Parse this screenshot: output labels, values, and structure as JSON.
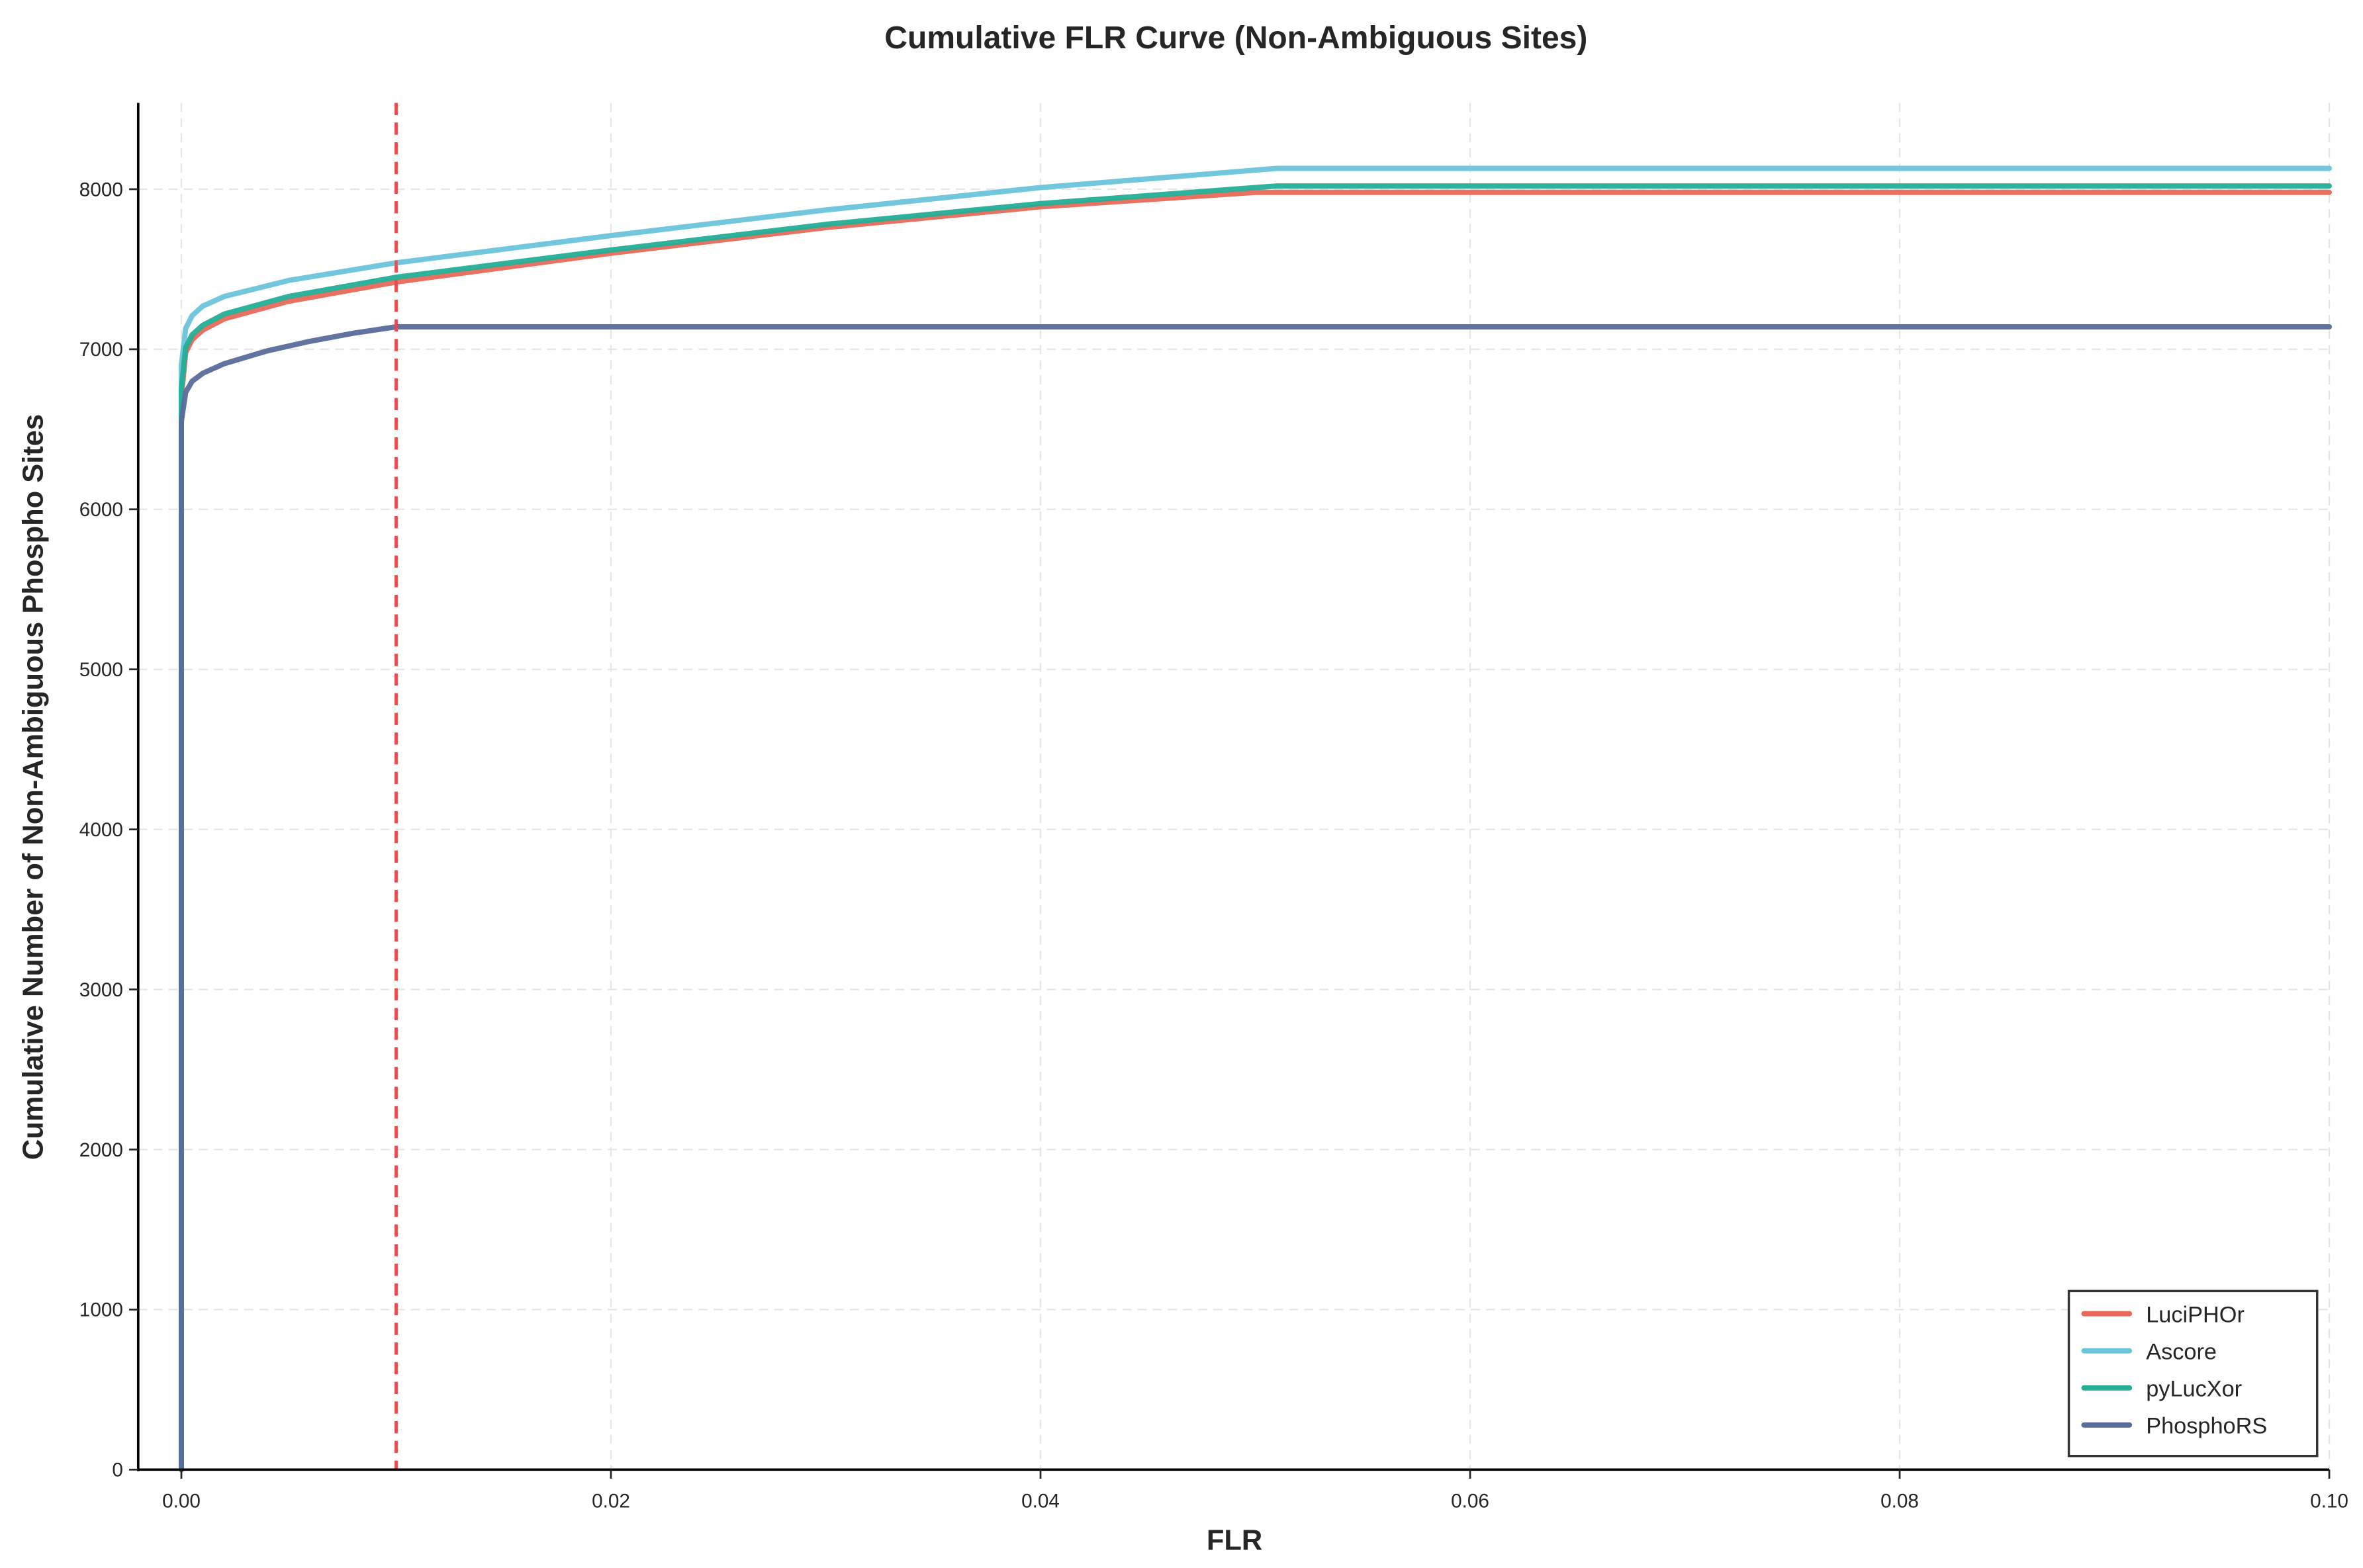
{
  "chart_data": {
    "type": "line",
    "title": "Cumulative FLR Curve (Non-Ambiguous Sites)",
    "xlabel": "FLR",
    "ylabel": "Cumulative Number of Non-Ambiguous Phospho Sites",
    "xlim": [
      -0.002,
      0.1
    ],
    "ylim": [
      0,
      8530
    ],
    "xticks": [
      0.0,
      0.02,
      0.04,
      0.06,
      0.08,
      0.1
    ],
    "xtick_labels": [
      "0.00",
      "0.02",
      "0.04",
      "0.06",
      "0.08",
      "0.10"
    ],
    "yticks": [
      0,
      1000,
      2000,
      3000,
      4000,
      5000,
      6000,
      7000,
      8000
    ],
    "ytick_labels": [
      "0",
      "1000",
      "2000",
      "3000",
      "4000",
      "5000",
      "6000",
      "7000",
      "8000"
    ],
    "grid": true,
    "legend_position": "lower right",
    "threshold_line": {
      "x": 0.01,
      "color": "#F0474C",
      "style": "dashed"
    },
    "series": [
      {
        "name": "LuciPHOr",
        "color": "#E8695A",
        "x": [
          0.0,
          0.0,
          0.0002,
          0.0005,
          0.001,
          0.002,
          0.005,
          0.01,
          0.02,
          0.03,
          0.04,
          0.05,
          0.1
        ],
        "y": [
          0,
          6700,
          6980,
          7060,
          7120,
          7190,
          7300,
          7420,
          7600,
          7760,
          7890,
          7980,
          7980
        ]
      },
      {
        "name": "Ascore",
        "color": "#6AC4DA",
        "x": [
          0.0,
          0.0,
          0.0002,
          0.0005,
          0.001,
          0.002,
          0.005,
          0.01,
          0.02,
          0.03,
          0.04,
          0.051,
          0.1
        ],
        "y": [
          0,
          6900,
          7130,
          7210,
          7270,
          7330,
          7430,
          7540,
          7710,
          7870,
          8010,
          8130,
          8130
        ]
      },
      {
        "name": "pyLucXor",
        "color": "#24AE96",
        "x": [
          0.0,
          0.0,
          0.0002,
          0.0005,
          0.001,
          0.002,
          0.005,
          0.01,
          0.02,
          0.03,
          0.04,
          0.051,
          0.1
        ],
        "y": [
          0,
          6750,
          7010,
          7090,
          7150,
          7220,
          7330,
          7450,
          7620,
          7780,
          7910,
          8020,
          8020
        ]
      },
      {
        "name": "PhosphoRS",
        "color": "#5A6C9A",
        "x": [
          0.0,
          0.0,
          0.0002,
          0.0005,
          0.001,
          0.002,
          0.004,
          0.006,
          0.008,
          0.01,
          0.1
        ],
        "y": [
          0,
          6550,
          6730,
          6800,
          6850,
          6910,
          6990,
          7050,
          7100,
          7140,
          7140
        ]
      }
    ]
  }
}
